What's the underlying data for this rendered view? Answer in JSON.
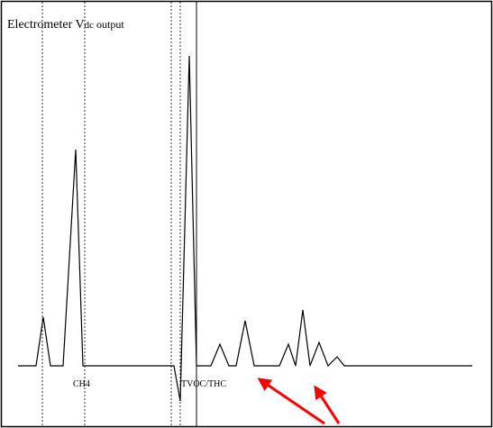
{
  "title": {
    "main": "Electrometer V",
    "subscript": "dc",
    "suffix": " output"
  },
  "peak_labels": {
    "ch4": "CH4",
    "tvoc": "TVOC/THC"
  },
  "colors": {
    "background": "#ffffff",
    "frame": "#000000",
    "trace": "#000000",
    "dotted_guides": "#000000",
    "arrows": "#ff0000"
  }
}
